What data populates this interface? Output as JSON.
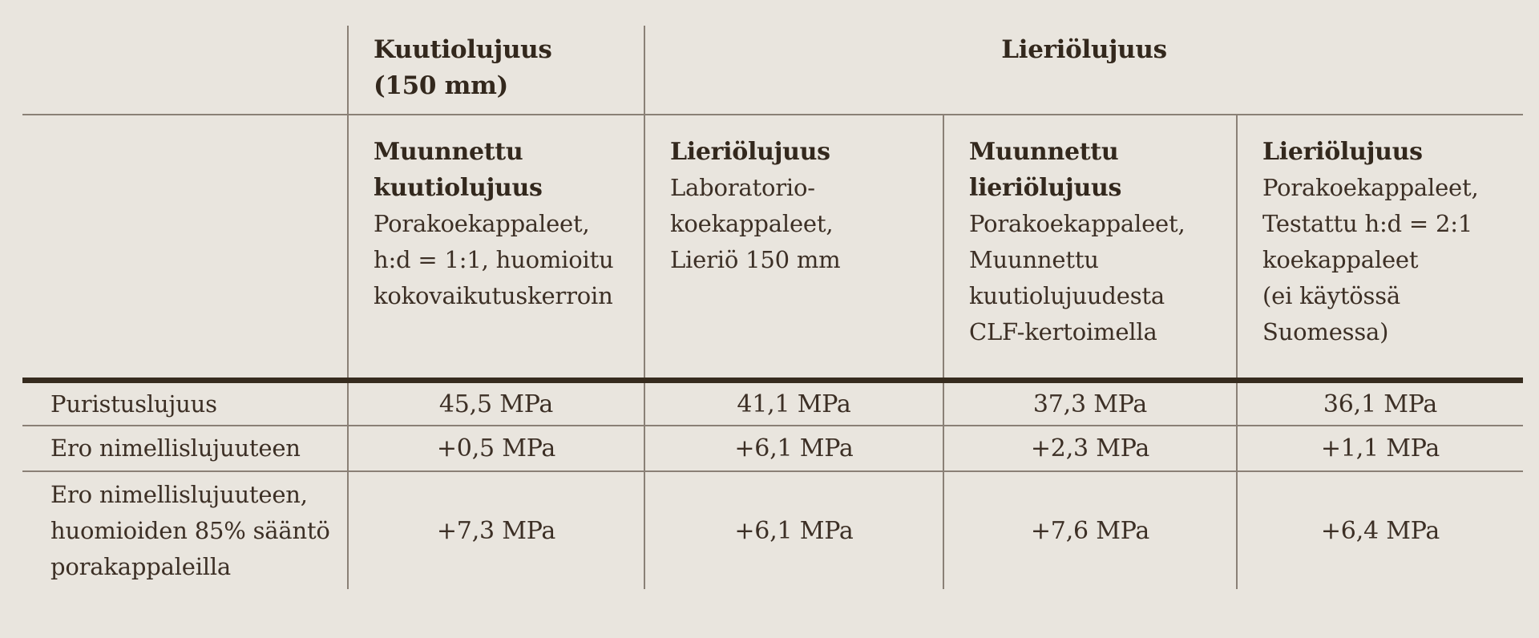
{
  "table": {
    "top_header": {
      "cube_title": "Kuutiolujuus\n(150 mm)",
      "cylinder_title": "Lieriölujuus"
    },
    "column_headers": [
      {
        "title": "Muunnettu\nkuutiolujuus",
        "subtitle": "Porakoekappaleet,\nh:d = 1:1, huomioitu\nkokovaikutuskerroin"
      },
      {
        "title": "Lieriölujuus",
        "subtitle": "Laboratorio-\nkoekappaleet,\nLieriö 150 mm"
      },
      {
        "title": "Muunnettu\nlieriölujuus",
        "subtitle": "Porakoekappaleet,\nMuunnettu\nkuutiolujuudesta\nCLF-kertoimella"
      },
      {
        "title": "Lieriölujuus",
        "subtitle": "Porakoekappaleet,\nTestattu h:d = 2:1\nkoekappaleet\n(ei käytössä\nSuomessa)"
      }
    ],
    "rows": [
      {
        "label": "Puristuslujuus",
        "values": [
          "45,5 MPa",
          "41,1 MPa",
          "37,3 MPa",
          "36,1 MPa"
        ]
      },
      {
        "label": "Ero nimellislujuuteen",
        "values": [
          "+0,5 MPa",
          "+6,1 MPa",
          "+2,3 MPa",
          "+1,1 MPa"
        ]
      },
      {
        "label": "Ero nimellislujuuteen,\nhuomioiden 85% sääntö\nporakappaleilla",
        "values": [
          "+7,3 MPa",
          "+6,1 MPa",
          "+7,6 MPa",
          "+6,4 MPa"
        ]
      }
    ],
    "colors": {
      "background": "#e9e5de",
      "text": "#3c2f25",
      "bold_text": "#33281d",
      "thin_rule": "#8a8076",
      "thick_rule": "#362b1e"
    }
  }
}
